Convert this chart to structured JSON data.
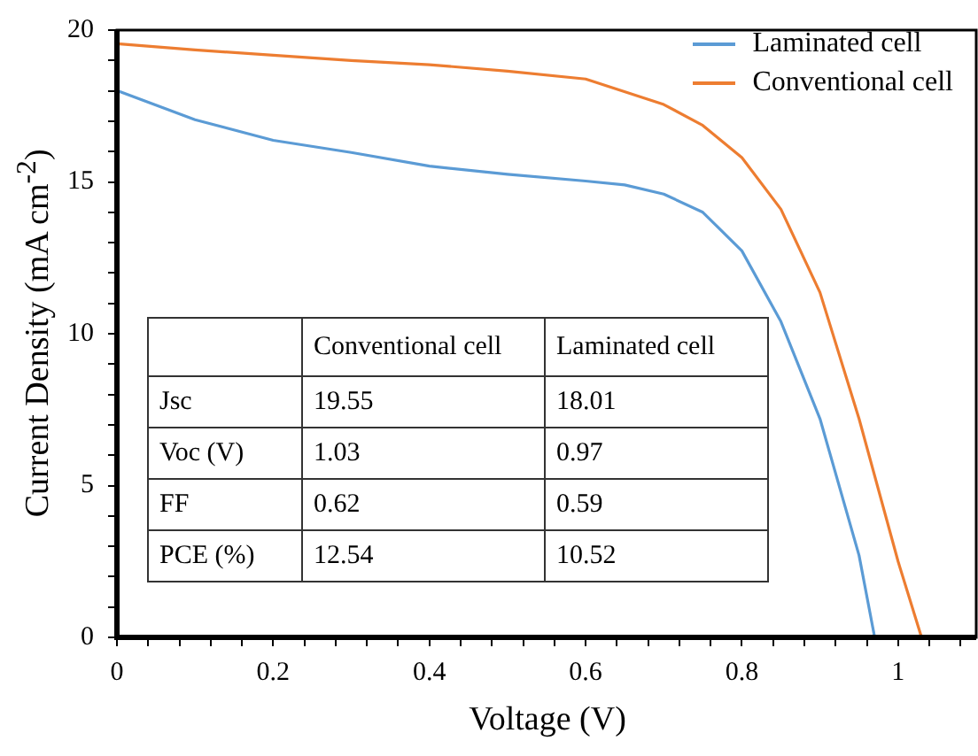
{
  "chart_data": {
    "type": "line",
    "xlabel": "Voltage (V)",
    "ylabel": "Current Density (mA cm$^{-2}$)",
    "xlim": [
      0,
      1.1
    ],
    "ylim": [
      0,
      20
    ],
    "xticks": [
      0,
      {
        "value": 0.04,
        "label": null
      },
      {
        "value": 0.08,
        "label": null
      },
      {
        "value": 0.12,
        "label": null
      },
      {
        "value": 0.16,
        "label": null
      },
      0.2,
      {
        "value": 0.24,
        "label": null
      },
      {
        "value": 0.28,
        "label": null
      },
      {
        "value": 0.32,
        "label": null
      },
      {
        "value": 0.36,
        "label": null
      },
      0.4,
      {
        "value": 0.44,
        "label": null
      },
      {
        "value": 0.48,
        "label": null
      },
      {
        "value": 0.52,
        "label": null
      },
      {
        "value": 0.56,
        "label": null
      },
      0.6,
      {
        "value": 0.64,
        "label": null
      },
      {
        "value": 0.68,
        "label": null
      },
      {
        "value": 0.72,
        "label": null
      },
      {
        "value": 0.76,
        "label": null
      },
      0.8,
      {
        "value": 0.84,
        "label": null
      },
      {
        "value": 0.88,
        "label": null
      },
      {
        "value": 0.92,
        "label": null
      },
      {
        "value": 0.96,
        "label": null
      },
      1,
      {
        "value": 1.04,
        "label": null
      },
      {
        "value": 1.08,
        "label": null
      }
    ],
    "yticks": [
      0,
      {
        "value": 1,
        "label": null
      },
      {
        "value": 2,
        "label": null
      },
      {
        "value": 3,
        "label": null
      },
      {
        "value": 4,
        "label": null
      },
      5,
      {
        "value": 6,
        "label": null
      },
      {
        "value": 7,
        "label": null
      },
      {
        "value": 8,
        "label": null
      },
      {
        "value": 9,
        "label": null
      },
      10,
      {
        "value": 11,
        "label": null
      },
      {
        "value": 12,
        "label": null
      },
      {
        "value": 13,
        "label": null
      },
      {
        "value": 14,
        "label": null
      },
      15,
      {
        "value": 16,
        "label": null
      },
      {
        "value": 17,
        "label": null
      },
      {
        "value": 18,
        "label": null
      },
      {
        "value": 19,
        "label": null
      },
      20
    ],
    "grid": false,
    "legend": "top right",
    "marker": "none",
    "line_style": "solid",
    "series": [
      {
        "name": "Laminated cell",
        "color": "#5b9bd5",
        "x": [
          0,
          0.1,
          0.2,
          0.3,
          0.4,
          0.5,
          0.6,
          0.65,
          0.7,
          0.75,
          0.8,
          0.85,
          0.9,
          0.95,
          0.97
        ],
        "values": [
          18.01,
          17.05,
          16.37,
          15.97,
          15.52,
          15.25,
          15.03,
          14.9,
          14.6,
          14.0,
          12.73,
          10.4,
          7.2,
          2.7,
          0
        ]
      },
      {
        "name": "Conventional cell",
        "color": "#ed7d31",
        "x": [
          0,
          0.1,
          0.2,
          0.3,
          0.4,
          0.5,
          0.6,
          0.7,
          0.75,
          0.8,
          0.85,
          0.9,
          0.95,
          1.0,
          1.03
        ],
        "values": [
          19.55,
          19.35,
          19.17,
          19.0,
          18.86,
          18.65,
          18.39,
          17.55,
          16.86,
          15.8,
          14.1,
          11.36,
          7.2,
          2.5,
          0
        ]
      }
    ],
    "annotations": [
      "Conventional cell",
      "Laminated cell",
      "Jsc",
      "19.55",
      "18.01",
      "Voc (V)",
      "1.03",
      "0.97",
      "FF",
      "0.62",
      "0.59",
      "PCE (%)",
      "12.54",
      "10.52"
    ]
  }
}
